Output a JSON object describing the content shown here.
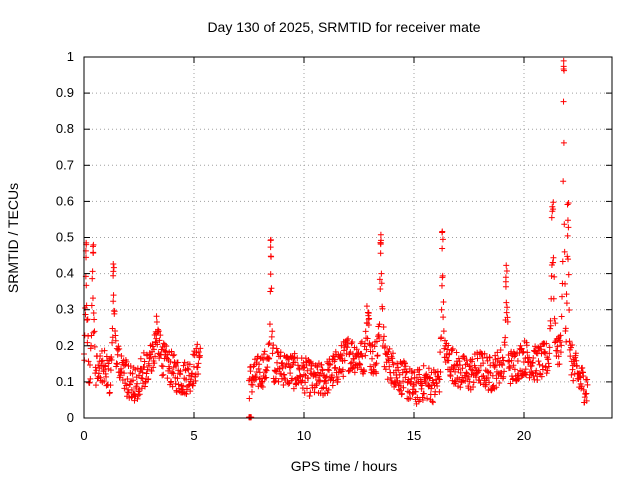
{
  "chart_data": {
    "type": "scatter",
    "title": "Day 130 of 2025, SRMTID for receiver mate",
    "xlabel": "GPS time / hours",
    "ylabel": "SRMTID / TECUs",
    "xlim": [
      0,
      24
    ],
    "ylim": [
      0,
      1
    ],
    "xticks": [
      0,
      5,
      10,
      15,
      20
    ],
    "xtick_labels": [
      "0",
      "5",
      "10",
      "15",
      "20"
    ],
    "yticks": [
      0,
      0.1,
      0.2,
      0.3,
      0.4,
      0.5,
      0.6,
      0.7,
      0.8,
      0.9,
      1
    ],
    "ytick_labels": [
      "0",
      "0.1",
      "0.2",
      "0.3",
      "0.4",
      "0.5",
      "0.6",
      "0.7",
      "0.8",
      "0.9",
      "1"
    ],
    "grid": true,
    "marker": "plus",
    "color": "#ff0000",
    "segments": [
      {
        "start": 0.0,
        "end": 5.3,
        "profile": [
          [
            0.0,
            0.12
          ],
          [
            0.3,
            0.14
          ],
          [
            0.6,
            0.13
          ],
          [
            0.9,
            0.15
          ],
          [
            1.2,
            0.11
          ],
          [
            1.5,
            0.16
          ],
          [
            1.8,
            0.12
          ],
          [
            2.1,
            0.1
          ],
          [
            2.4,
            0.09
          ],
          [
            2.7,
            0.13
          ],
          [
            3.0,
            0.15
          ],
          [
            3.3,
            0.17
          ],
          [
            3.6,
            0.16
          ],
          [
            3.9,
            0.14
          ],
          [
            4.2,
            0.12
          ],
          [
            4.5,
            0.11
          ],
          [
            4.8,
            0.12
          ],
          [
            5.1,
            0.15
          ],
          [
            5.3,
            0.18
          ]
        ]
      },
      {
        "start": 7.5,
        "end": 7.6,
        "profile": [
          [
            7.5,
            0.0
          ],
          [
            7.6,
            0.0
          ]
        ]
      },
      {
        "start": 7.5,
        "end": 22.9,
        "profile": [
          [
            7.5,
            0.1
          ],
          [
            8.0,
            0.13
          ],
          [
            8.5,
            0.15
          ],
          [
            9.0,
            0.14
          ],
          [
            9.5,
            0.13
          ],
          [
            10.0,
            0.12
          ],
          [
            10.5,
            0.1
          ],
          [
            11.0,
            0.11
          ],
          [
            11.5,
            0.14
          ],
          [
            12.0,
            0.18
          ],
          [
            12.5,
            0.17
          ],
          [
            13.0,
            0.16
          ],
          [
            13.5,
            0.18
          ],
          [
            14.0,
            0.14
          ],
          [
            14.5,
            0.11
          ],
          [
            15.0,
            0.08
          ],
          [
            15.5,
            0.1
          ],
          [
            16.0,
            0.09
          ],
          [
            16.5,
            0.17
          ],
          [
            17.0,
            0.13
          ],
          [
            17.5,
            0.12
          ],
          [
            18.0,
            0.14
          ],
          [
            18.5,
            0.12
          ],
          [
            19.0,
            0.15
          ],
          [
            19.5,
            0.14
          ],
          [
            20.0,
            0.17
          ],
          [
            20.5,
            0.15
          ],
          [
            21.0,
            0.16
          ],
          [
            21.5,
            0.2
          ],
          [
            22.0,
            0.18
          ],
          [
            22.5,
            0.11
          ],
          [
            22.9,
            0.08
          ]
        ]
      }
    ],
    "bursts": [
      {
        "x": 0.1,
        "peak": 0.5,
        "width": 0.15
      },
      {
        "x": 0.4,
        "peak": 0.48,
        "width": 0.15
      },
      {
        "x": 1.35,
        "peak": 0.44,
        "width": 0.2
      },
      {
        "x": 3.3,
        "peak": 0.26,
        "width": 0.3
      },
      {
        "x": 8.5,
        "peak": 0.5,
        "width": 0.15
      },
      {
        "x": 12.9,
        "peak": 0.31,
        "width": 0.25
      },
      {
        "x": 13.5,
        "peak": 0.53,
        "width": 0.18
      },
      {
        "x": 16.3,
        "peak": 0.52,
        "width": 0.15
      },
      {
        "x": 19.2,
        "peak": 0.43,
        "width": 0.15
      },
      {
        "x": 21.3,
        "peak": 0.6,
        "width": 0.2
      },
      {
        "x": 21.8,
        "peak": 0.99,
        "width": 0.12
      },
      {
        "x": 22.0,
        "peak": 0.6,
        "width": 0.15
      }
    ]
  }
}
